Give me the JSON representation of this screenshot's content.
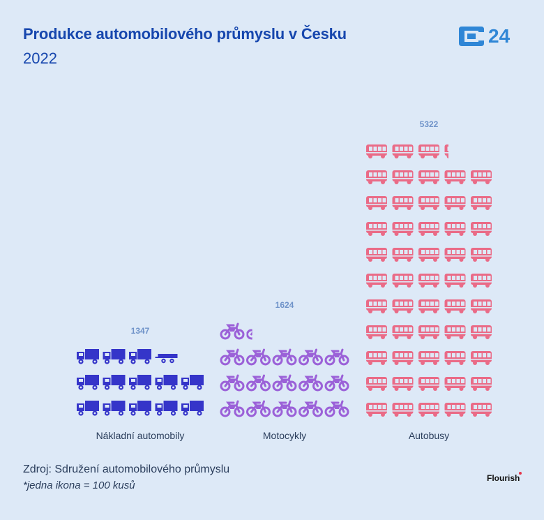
{
  "title": "Produkce automobilového průmyslu v Česku",
  "subtitle": "2022",
  "logo": {
    "text": "24",
    "icon": "ct24-logo-icon",
    "color": "#2f86d6"
  },
  "footer": {
    "source": "Zdroj: Sdružení automobilového průmyslu",
    "note": "*jedna ikona = 100 kusů",
    "credit": "Flourish"
  },
  "chart_data": {
    "type": "pictogram",
    "unit_per_icon": 100,
    "categories": [
      "Nákladní automobily",
      "Motocykly",
      "Autobusy"
    ],
    "series": [
      {
        "category": "Nákladní automobily",
        "value": 1347,
        "value_label": "1347",
        "icon": "truck-icon",
        "color": "#3535c9"
      },
      {
        "category": "Motocykly",
        "value": 1624,
        "value_label": "1624",
        "icon": "motorcycle-icon",
        "color": "#9b61d8"
      },
      {
        "category": "Autobusy",
        "value": 5322,
        "value_label": "5322",
        "icon": "bus-icon",
        "color": "#ea6b87"
      }
    ],
    "icons_per_row": 5,
    "grid": false,
    "legend": "none"
  }
}
